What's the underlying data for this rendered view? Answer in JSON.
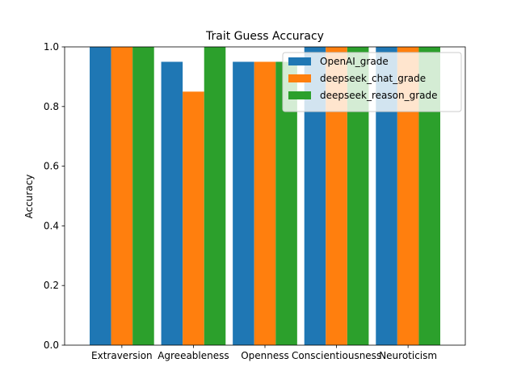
{
  "chart_data": {
    "type": "bar",
    "title": "Trait Guess Accuracy",
    "xlabel": "",
    "ylabel": "Accuracy",
    "ylim": [
      0,
      1.0
    ],
    "yticks": [
      "0.0",
      "0.2",
      "0.4",
      "0.6",
      "0.8",
      "1.0"
    ],
    "categories": [
      "Extraversion",
      "Agreeableness",
      "Openness",
      "Conscientiousness",
      "Neuroticism"
    ],
    "series": [
      {
        "name": "OpenAI_grade",
        "color": "#1f77b4",
        "values": [
          1.0,
          0.95,
          0.95,
          1.0,
          1.0
        ]
      },
      {
        "name": "deepseek_chat_grade",
        "color": "#ff7f0e",
        "values": [
          1.0,
          0.85,
          0.95,
          1.0,
          1.0
        ]
      },
      {
        "name": "deepseek_reason_grade",
        "color": "#2ca02c",
        "values": [
          1.0,
          1.0,
          0.95,
          1.0,
          1.0
        ]
      }
    ],
    "legend_position": "top-right",
    "grid": false
  }
}
